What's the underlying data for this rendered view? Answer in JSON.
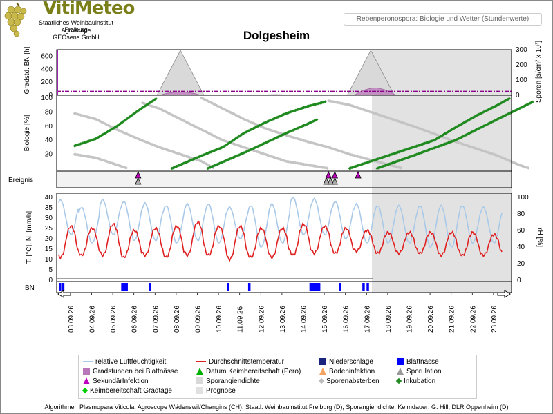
{
  "header": {
    "brand": "VitiMeteo",
    "org_lines": [
      "Staatliches Weinbauinstitut Freiburg",
      "Agroscope",
      "GEOsens GmbH"
    ],
    "subtitle_box": "Rebenperonospora: Biologie und Wetter (Stundenwerte)"
  },
  "title": "Dolgesheim",
  "footer": "Algorithmen Plasmopara Viticola: Agroscope Wädenswil/Changins (CH), Staatl. Weinbauinstitut Freiburg (D), Sporangiendichte, Keimdauer: G. Hill, DLR Oppenheim (D)",
  "panel_labels": {
    "gradstd": "Gradstd. BN [h]",
    "sporen": "Sporen [s/cm² x 10³]",
    "biologie": "Biologie [%]",
    "ereignis": "Ereignis",
    "temp": "T. [°C], N. [mm/h]",
    "rh": "rH [%]",
    "bn": "BN"
  },
  "chart_data": {
    "type": "line",
    "dates": [
      "03.09.26",
      "04.09.26",
      "05.09.26",
      "06.09.26",
      "07.09.26",
      "08.09.26",
      "09.09.26",
      "10.09.26",
      "11.09.26",
      "12.09.26",
      "13.09.26",
      "14.09.26",
      "15.09.26",
      "16.09.26",
      "17.09.26",
      "18.09.26",
      "19.09.26",
      "20.09.26",
      "21.09.26",
      "22.09.26",
      "23.09.26"
    ],
    "forecast_from": "16.09.26 (evening)",
    "gradstd": {
      "ylim": [
        0,
        700
      ],
      "ticks": [
        0,
        200,
        400,
        600
      ],
      "sporangia_peaks": [
        {
          "day": 5.0,
          "height": 690
        },
        {
          "day": 14.0,
          "height": 690
        }
      ],
      "gradstunden_peaks": [
        {
          "day": 5.0,
          "height": 100
        },
        {
          "day": 7.0,
          "height": 5
        },
        {
          "day": 9.5,
          "height": 20
        },
        {
          "day": 14.2,
          "height": 220
        }
      ],
      "threshold": 60
    },
    "sporen": {
      "ylim": [
        0,
        300
      ],
      "ticks": [
        0,
        100,
        200,
        300
      ]
    },
    "biologie": {
      "ylim": [
        0,
        100
      ],
      "ticks": [
        20,
        40,
        60,
        80,
        100
      ],
      "incubation_series": [
        [
          [
            0.0,
            32
          ],
          [
            1.0,
            42
          ],
          [
            2.0,
            60
          ],
          [
            3.0,
            82
          ],
          [
            3.9,
            100
          ]
        ],
        [
          [
            4.6,
            0
          ],
          [
            6.0,
            18
          ],
          [
            7.0,
            30
          ],
          [
            8.0,
            50
          ],
          [
            9.0,
            65
          ],
          [
            10.0,
            78
          ],
          [
            11.0,
            88
          ],
          [
            11.9,
            95
          ]
        ],
        [
          [
            6.3,
            0
          ],
          [
            8.0,
            22
          ],
          [
            10.0,
            50
          ],
          [
            11.0,
            63
          ],
          [
            11.5,
            70
          ]
        ],
        [
          [
            13.0,
            0
          ],
          [
            14.0,
            10
          ],
          [
            16.0,
            30
          ],
          [
            17.0,
            40
          ],
          [
            18.0,
            58
          ],
          [
            19.0,
            75
          ],
          [
            20.0,
            90
          ],
          [
            20.6,
            100
          ]
        ],
        [
          [
            14.3,
            0
          ],
          [
            16.0,
            18
          ],
          [
            18.0,
            40
          ],
          [
            20.0,
            70
          ],
          [
            21.7,
            95
          ]
        ]
      ],
      "sporangia_death_series": [
        [
          [
            0.0,
            78
          ],
          [
            1.0,
            70
          ],
          [
            2.0,
            55
          ],
          [
            3.0,
            42
          ],
          [
            4.0,
            30
          ],
          [
            5.0,
            20
          ],
          [
            6.0,
            10
          ],
          [
            6.6,
            0
          ]
        ],
        [
          [
            0.0,
            20
          ],
          [
            1.0,
            15
          ],
          [
            2.0,
            5
          ],
          [
            2.5,
            0
          ]
        ],
        [
          [
            3.2,
            93
          ],
          [
            4.0,
            85
          ],
          [
            5.0,
            70
          ],
          [
            6.0,
            55
          ],
          [
            7.0,
            40
          ],
          [
            8.0,
            30
          ],
          [
            9.0,
            20
          ],
          [
            10.0,
            10
          ],
          [
            11.0,
            5
          ],
          [
            12.0,
            0
          ]
        ],
        [
          [
            12.0,
            96
          ],
          [
            13.0,
            90
          ],
          [
            14.0,
            80
          ],
          [
            16.0,
            60
          ],
          [
            18.0,
            38
          ],
          [
            20.0,
            18
          ],
          [
            21.0,
            5
          ],
          [
            21.5,
            0
          ]
        ],
        [
          [
            6.0,
            100
          ],
          [
            7.0,
            85
          ],
          [
            8.0,
            70
          ],
          [
            9.0,
            57
          ],
          [
            10.0,
            47
          ],
          [
            11.0,
            38
          ],
          [
            12.0,
            30
          ],
          [
            13.0,
            20
          ],
          [
            14.0,
            12
          ],
          [
            15.0,
            4
          ],
          [
            15.5,
            0
          ]
        ]
      ]
    },
    "ereignis": {
      "secondary_infections": [
        3.0,
        12.0,
        12.3,
        13.4
      ],
      "sporulations": [
        3.0,
        11.9,
        12.1,
        12.3
      ]
    },
    "temperature": {
      "ylim": [
        0,
        40
      ],
      "ticks": [
        0,
        5,
        10,
        15,
        20,
        25,
        30,
        35,
        40
      ],
      "daily_min": [
        11,
        12,
        12,
        11,
        12,
        11,
        12,
        12,
        10,
        11,
        11,
        12,
        13,
        13,
        14,
        13,
        13,
        13,
        12,
        12,
        12
      ],
      "daily_max": [
        26,
        25,
        27,
        24,
        25,
        26,
        28,
        26,
        26,
        25,
        25,
        27,
        26,
        25,
        24,
        23,
        23,
        23,
        23,
        23,
        22
      ]
    },
    "humidity": {
      "ylim": [
        0,
        100
      ],
      "ticks": [
        0,
        20,
        40,
        60,
        80,
        100
      ],
      "daily_min": [
        55,
        45,
        55,
        48,
        48,
        45,
        48,
        45,
        50,
        40,
        45,
        55,
        55,
        50,
        45,
        45,
        45,
        40,
        40,
        45,
        45
      ],
      "daily_max": [
        97,
        88,
        97,
        95,
        93,
        90,
        92,
        92,
        88,
        90,
        92,
        100,
        98,
        95,
        92,
        90,
        90,
        90,
        90,
        90,
        88
      ]
    },
    "blattnaesse_days": [
      0.05,
      0.2,
      3.0,
      3.1,
      3.2,
      4.3,
      8.0,
      9.0,
      11.9,
      12.0,
      12.1,
      12.2,
      12.3,
      13.3,
      14.4,
      14.6
    ],
    "precipitation": "none shown",
    "legend": [
      {
        "key": "rh",
        "label": "relative Luftfeuchtigkeit",
        "color": "#a9c9e8"
      },
      {
        "key": "temp",
        "label": "Durchschnittstemperatur",
        "color": "#e02020"
      },
      {
        "key": "rain",
        "label": "Niederschläge",
        "color": "#1a237e"
      },
      {
        "key": "bn",
        "label": "Blattnässe",
        "color": "#0000ff"
      },
      {
        "key": "gradstd",
        "label": "Gradstunden bei Blattnässe",
        "color": "#b877b8"
      },
      {
        "key": "keim",
        "label": "Datum Keimbereitschaft (Pero)",
        "color": "#00b000"
      },
      {
        "key": "boden",
        "label": "Bodeninfektion",
        "color": "#f4a460"
      },
      {
        "key": "sporul",
        "label": "Sporulation",
        "color": "#999999"
      },
      {
        "key": "sek",
        "label": "SekundärInfektion",
        "color": "#c000c0"
      },
      {
        "key": "spdens",
        "label": "Sporangiendichte",
        "color": "#d8d8d8"
      },
      {
        "key": "spab",
        "label": "Sporenabsterben",
        "color": "#bbbbbb"
      },
      {
        "key": "inkub",
        "label": "Inkubation",
        "color": "#228b22"
      },
      {
        "key": "keimgrad",
        "label": "Keimbereitschaft Gradtage",
        "color": "#00cc00"
      },
      {
        "key": "prognose",
        "label": "Prognose",
        "color": "#e0e0e0"
      }
    ]
  }
}
